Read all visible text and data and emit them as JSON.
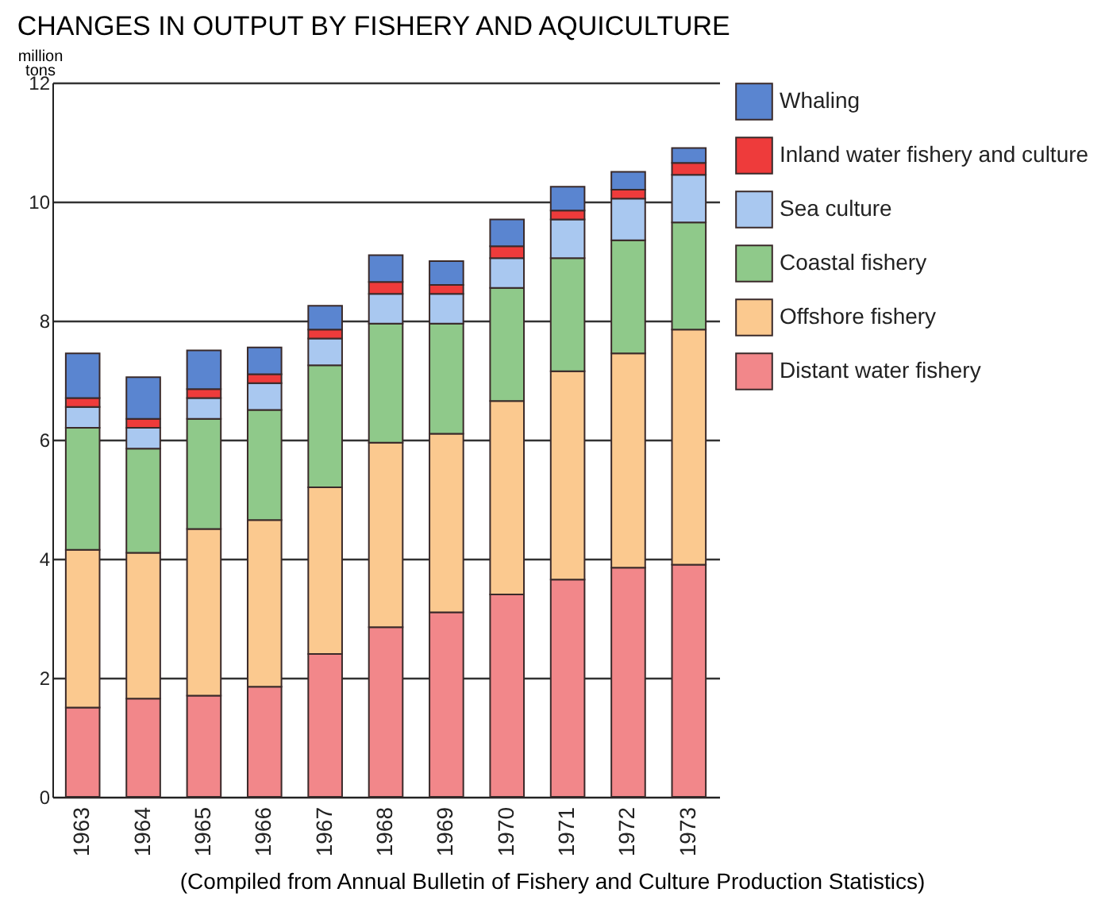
{
  "chart_data": {
    "type": "bar",
    "title": "CHANGES IN OUTPUT BY FISHERY AND AQUICULTURE",
    "ylabel": "million tons",
    "stacked": true,
    "legend": "right",
    "grid": "y",
    "categories": [
      "1963",
      "1964",
      "1965",
      "1966",
      "1967",
      "1968",
      "1969",
      "1970",
      "1971",
      "1972",
      "1973"
    ],
    "ylim": [
      0,
      12
    ],
    "yticks": [
      0,
      2,
      4,
      6,
      8,
      10,
      12
    ],
    "series": [
      {
        "name": "Distant water fishery",
        "color": "#f2878a",
        "values": [
          1.5,
          1.65,
          1.7,
          1.85,
          2.4,
          2.85,
          3.1,
          3.4,
          3.65,
          3.85,
          3.9
        ]
      },
      {
        "name": "Offshore fishery",
        "color": "#fbc98f",
        "values": [
          2.65,
          2.45,
          2.8,
          2.8,
          2.8,
          3.1,
          3.0,
          3.25,
          3.5,
          3.6,
          3.95
        ]
      },
      {
        "name": "Coastal fishery",
        "color": "#8fc98a",
        "values": [
          2.05,
          1.75,
          1.85,
          1.85,
          2.05,
          2.0,
          1.85,
          1.9,
          1.9,
          1.9,
          1.8
        ]
      },
      {
        "name": "Sea culture",
        "color": "#a9c8f0",
        "values": [
          0.35,
          0.35,
          0.35,
          0.45,
          0.45,
          0.5,
          0.5,
          0.5,
          0.65,
          0.7,
          0.8
        ]
      },
      {
        "name": "Inland water fishery and culture",
        "color": "#ee3b3b",
        "values": [
          0.15,
          0.15,
          0.15,
          0.15,
          0.15,
          0.2,
          0.15,
          0.2,
          0.15,
          0.15,
          0.2
        ]
      },
      {
        "name": "Whaling",
        "color": "#5a85d0",
        "values": [
          0.75,
          0.7,
          0.65,
          0.45,
          0.4,
          0.45,
          0.4,
          0.45,
          0.4,
          0.3,
          0.25
        ]
      }
    ],
    "annotations": [
      "(Compiled from Annual Bulletin of Fishery and Culture Production Statistics)"
    ]
  }
}
